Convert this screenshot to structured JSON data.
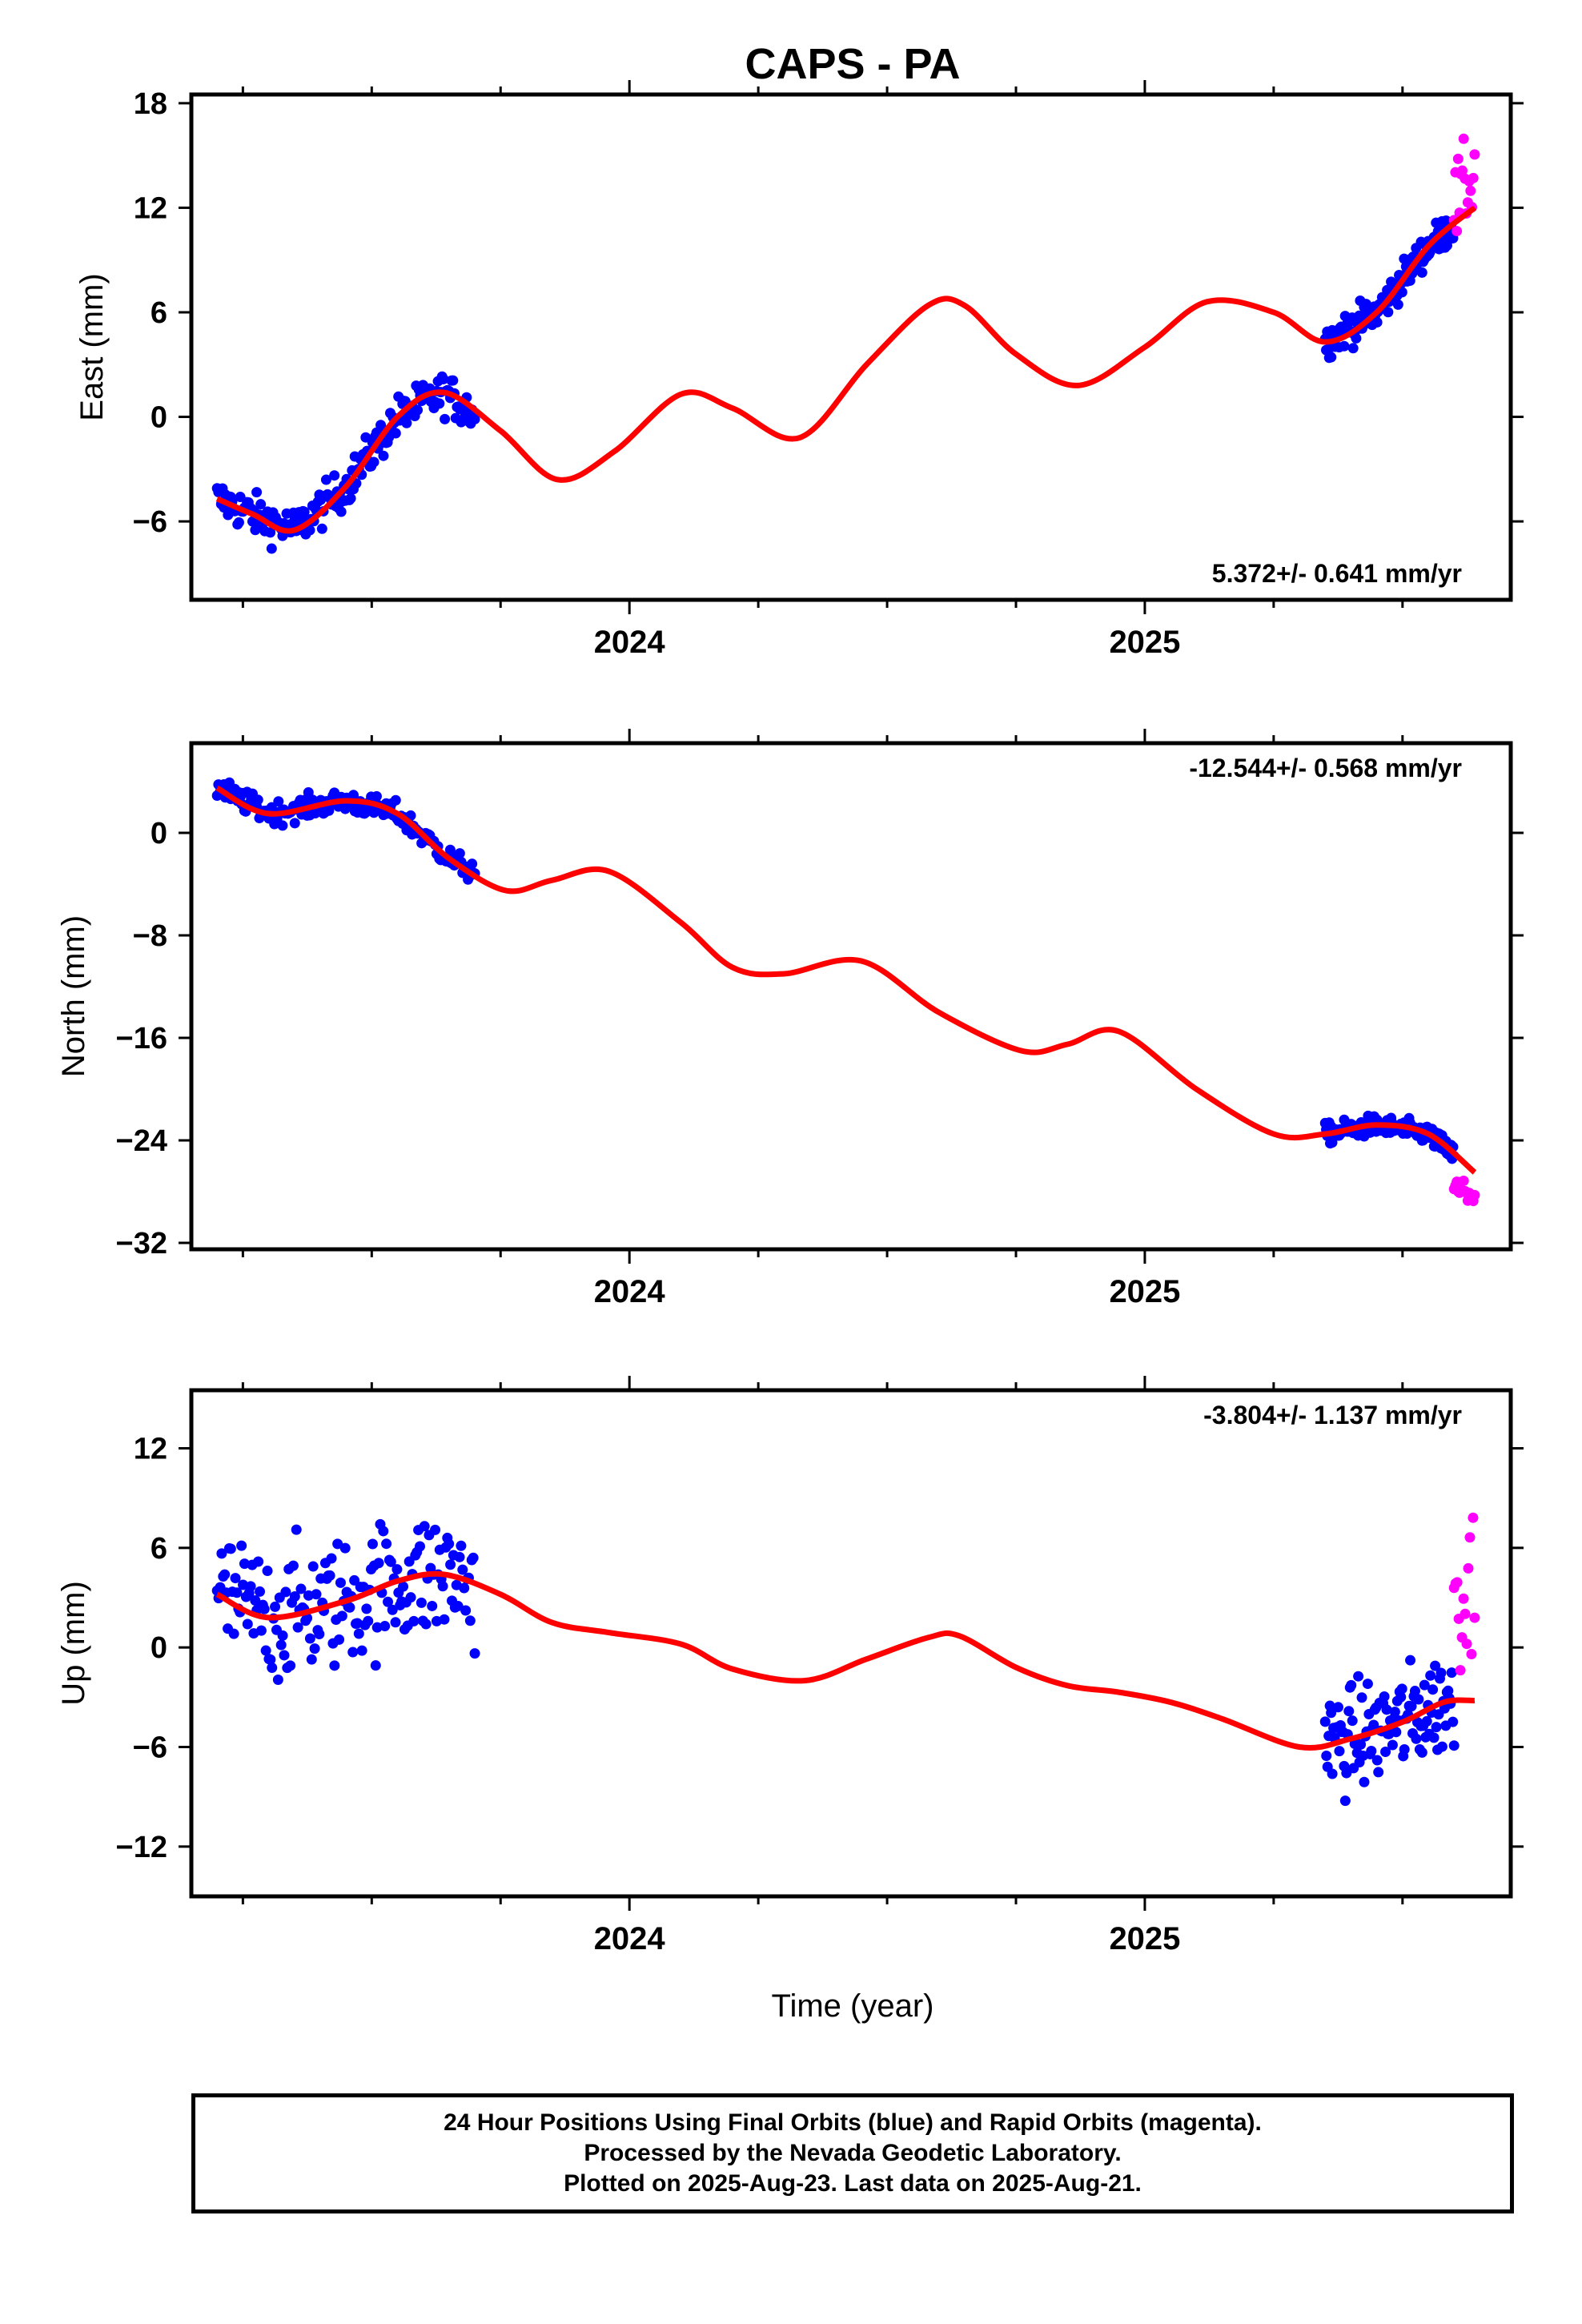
{
  "title": "CAPS - PA",
  "xlabel": "Time (year)",
  "footer": {
    "line1": "24 Hour Positions Using Final Orbits (blue) and Rapid Orbits (magenta).",
    "line2": "Processed by the Nevada Geodetic Laboratory.",
    "line3": "Plotted on 2025-Aug-23. Last data on 2025-Aug-21."
  },
  "colors": {
    "final": "#0000ff",
    "rapid": "#ff00ff",
    "model": "#ff0000",
    "axes": "#000000"
  },
  "chart_data": [
    {
      "type": "scatter",
      "ylabel": "East (mm)",
      "rate": "5.372+/- 0.641 mm/yr",
      "xlim": [
        2023.15,
        2025.71
      ],
      "ylim": [
        -10.5,
        18.5
      ],
      "yticks": [
        18,
        12,
        6,
        0,
        -6
      ],
      "xtick_labels": [
        "2024",
        "2025"
      ],
      "final_segments": [
        {
          "x": [
            2023.2,
            2023.7
          ],
          "y": [
            -5.5,
            1.0
          ],
          "n": 190,
          "noise": 1.2
        },
        {
          "x": [
            2025.35,
            2025.6
          ],
          "y": [
            4.5,
            12.0
          ],
          "n": 130,
          "noise": 1.0
        }
      ],
      "rapid_segment": {
        "x": [
          2025.6,
          2025.64
        ],
        "y": [
          12.0,
          14.0
        ],
        "n": 16,
        "noise": 2.5
      },
      "model": {
        "x": [
          2023.2,
          2023.27,
          2023.35,
          2023.45,
          2023.55,
          2023.64,
          2023.75,
          2023.86,
          2023.97,
          2024.1,
          2024.2,
          2024.33,
          2024.46,
          2024.58,
          2024.65,
          2024.75,
          2024.87,
          2025.0,
          2025.12,
          2025.25,
          2025.35,
          2025.45,
          2025.55,
          2025.64
        ],
        "y": [
          -4.7,
          -5.6,
          -6.5,
          -4.0,
          0.0,
          1.4,
          -0.8,
          -3.6,
          -2.0,
          1.3,
          0.5,
          -1.2,
          3.0,
          6.4,
          6.4,
          3.6,
          1.8,
          4.0,
          6.6,
          6.0,
          4.3,
          6.0,
          9.8,
          12.0
        ]
      }
    },
    {
      "type": "scatter",
      "ylabel": "North (mm)",
      "rate": "-12.544+/- 0.568 mm/yr",
      "xlim": [
        2023.15,
        2025.71
      ],
      "ylim": [
        -32.5,
        7.0
      ],
      "yticks": [
        0,
        -8,
        -16,
        -24,
        -32
      ],
      "xtick_labels": [
        "2024",
        "2025"
      ],
      "final_segments": [
        {
          "x": [
            2023.2,
            2023.7
          ],
          "y": [
            2.5,
            -3.0
          ],
          "n": 190,
          "noise": 0.9
        },
        {
          "x": [
            2025.35,
            2025.6
          ],
          "y": [
            -23.5,
            -24.0
          ],
          "n": 130,
          "noise": 0.8
        }
      ],
      "rapid_segment": {
        "x": [
          2025.6,
          2025.64
        ],
        "y": [
          -28.0,
          -28.0
        ],
        "n": 16,
        "noise": 1.6
      },
      "model": {
        "x": [
          2023.2,
          2023.3,
          2023.45,
          2023.55,
          2023.65,
          2023.76,
          2023.85,
          2023.96,
          2024.1,
          2024.2,
          2024.3,
          2024.45,
          2024.6,
          2024.76,
          2024.85,
          2024.95,
          2025.1,
          2025.25,
          2025.35,
          2025.45,
          2025.55,
          2025.64
        ],
        "y": [
          3.5,
          1.5,
          2.5,
          1.5,
          -2.0,
          -4.5,
          -3.7,
          -3.0,
          -7.0,
          -10.5,
          -11.0,
          -10.0,
          -14.0,
          -17.0,
          -16.5,
          -15.5,
          -20.0,
          -23.5,
          -23.5,
          -22.8,
          -23.5,
          -26.5
        ]
      }
    },
    {
      "type": "scatter",
      "ylabel": "Up (mm)",
      "rate": "-3.804+/- 1.137 mm/yr",
      "xlim": [
        2023.15,
        2025.71
      ],
      "ylim": [
        -15.0,
        15.5
      ],
      "yticks": [
        12,
        6,
        0,
        -6,
        -12
      ],
      "xtick_labels": [
        "2024",
        "2025"
      ],
      "final_segments": [
        {
          "x": [
            2023.2,
            2023.7
          ],
          "y": [
            2.0,
            2.5
          ],
          "n": 170,
          "noise": 4.0
        },
        {
          "x": [
            2025.35,
            2025.6
          ],
          "y": [
            -5.0,
            -5.0
          ],
          "n": 110,
          "noise": 3.2
        }
      ],
      "rapid_segment": {
        "x": [
          2025.6,
          2025.64
        ],
        "y": [
          3.5,
          3.5
        ],
        "n": 14,
        "noise": 5.0
      },
      "model": {
        "x": [
          2023.2,
          2023.3,
          2023.45,
          2023.55,
          2023.64,
          2023.75,
          2023.85,
          2023.96,
          2024.1,
          2024.2,
          2024.34,
          2024.46,
          2024.58,
          2024.64,
          2024.75,
          2024.85,
          2024.95,
          2025.05,
          2025.15,
          2025.3,
          2025.4,
          2025.5,
          2025.58,
          2025.64
        ],
        "y": [
          3.2,
          1.8,
          2.8,
          4.0,
          4.4,
          3.2,
          1.5,
          0.9,
          0.2,
          -1.3,
          -2.0,
          -0.7,
          0.6,
          0.7,
          -1.2,
          -2.3,
          -2.7,
          -3.3,
          -4.3,
          -6.0,
          -5.5,
          -4.5,
          -3.3,
          -3.2
        ]
      }
    }
  ]
}
